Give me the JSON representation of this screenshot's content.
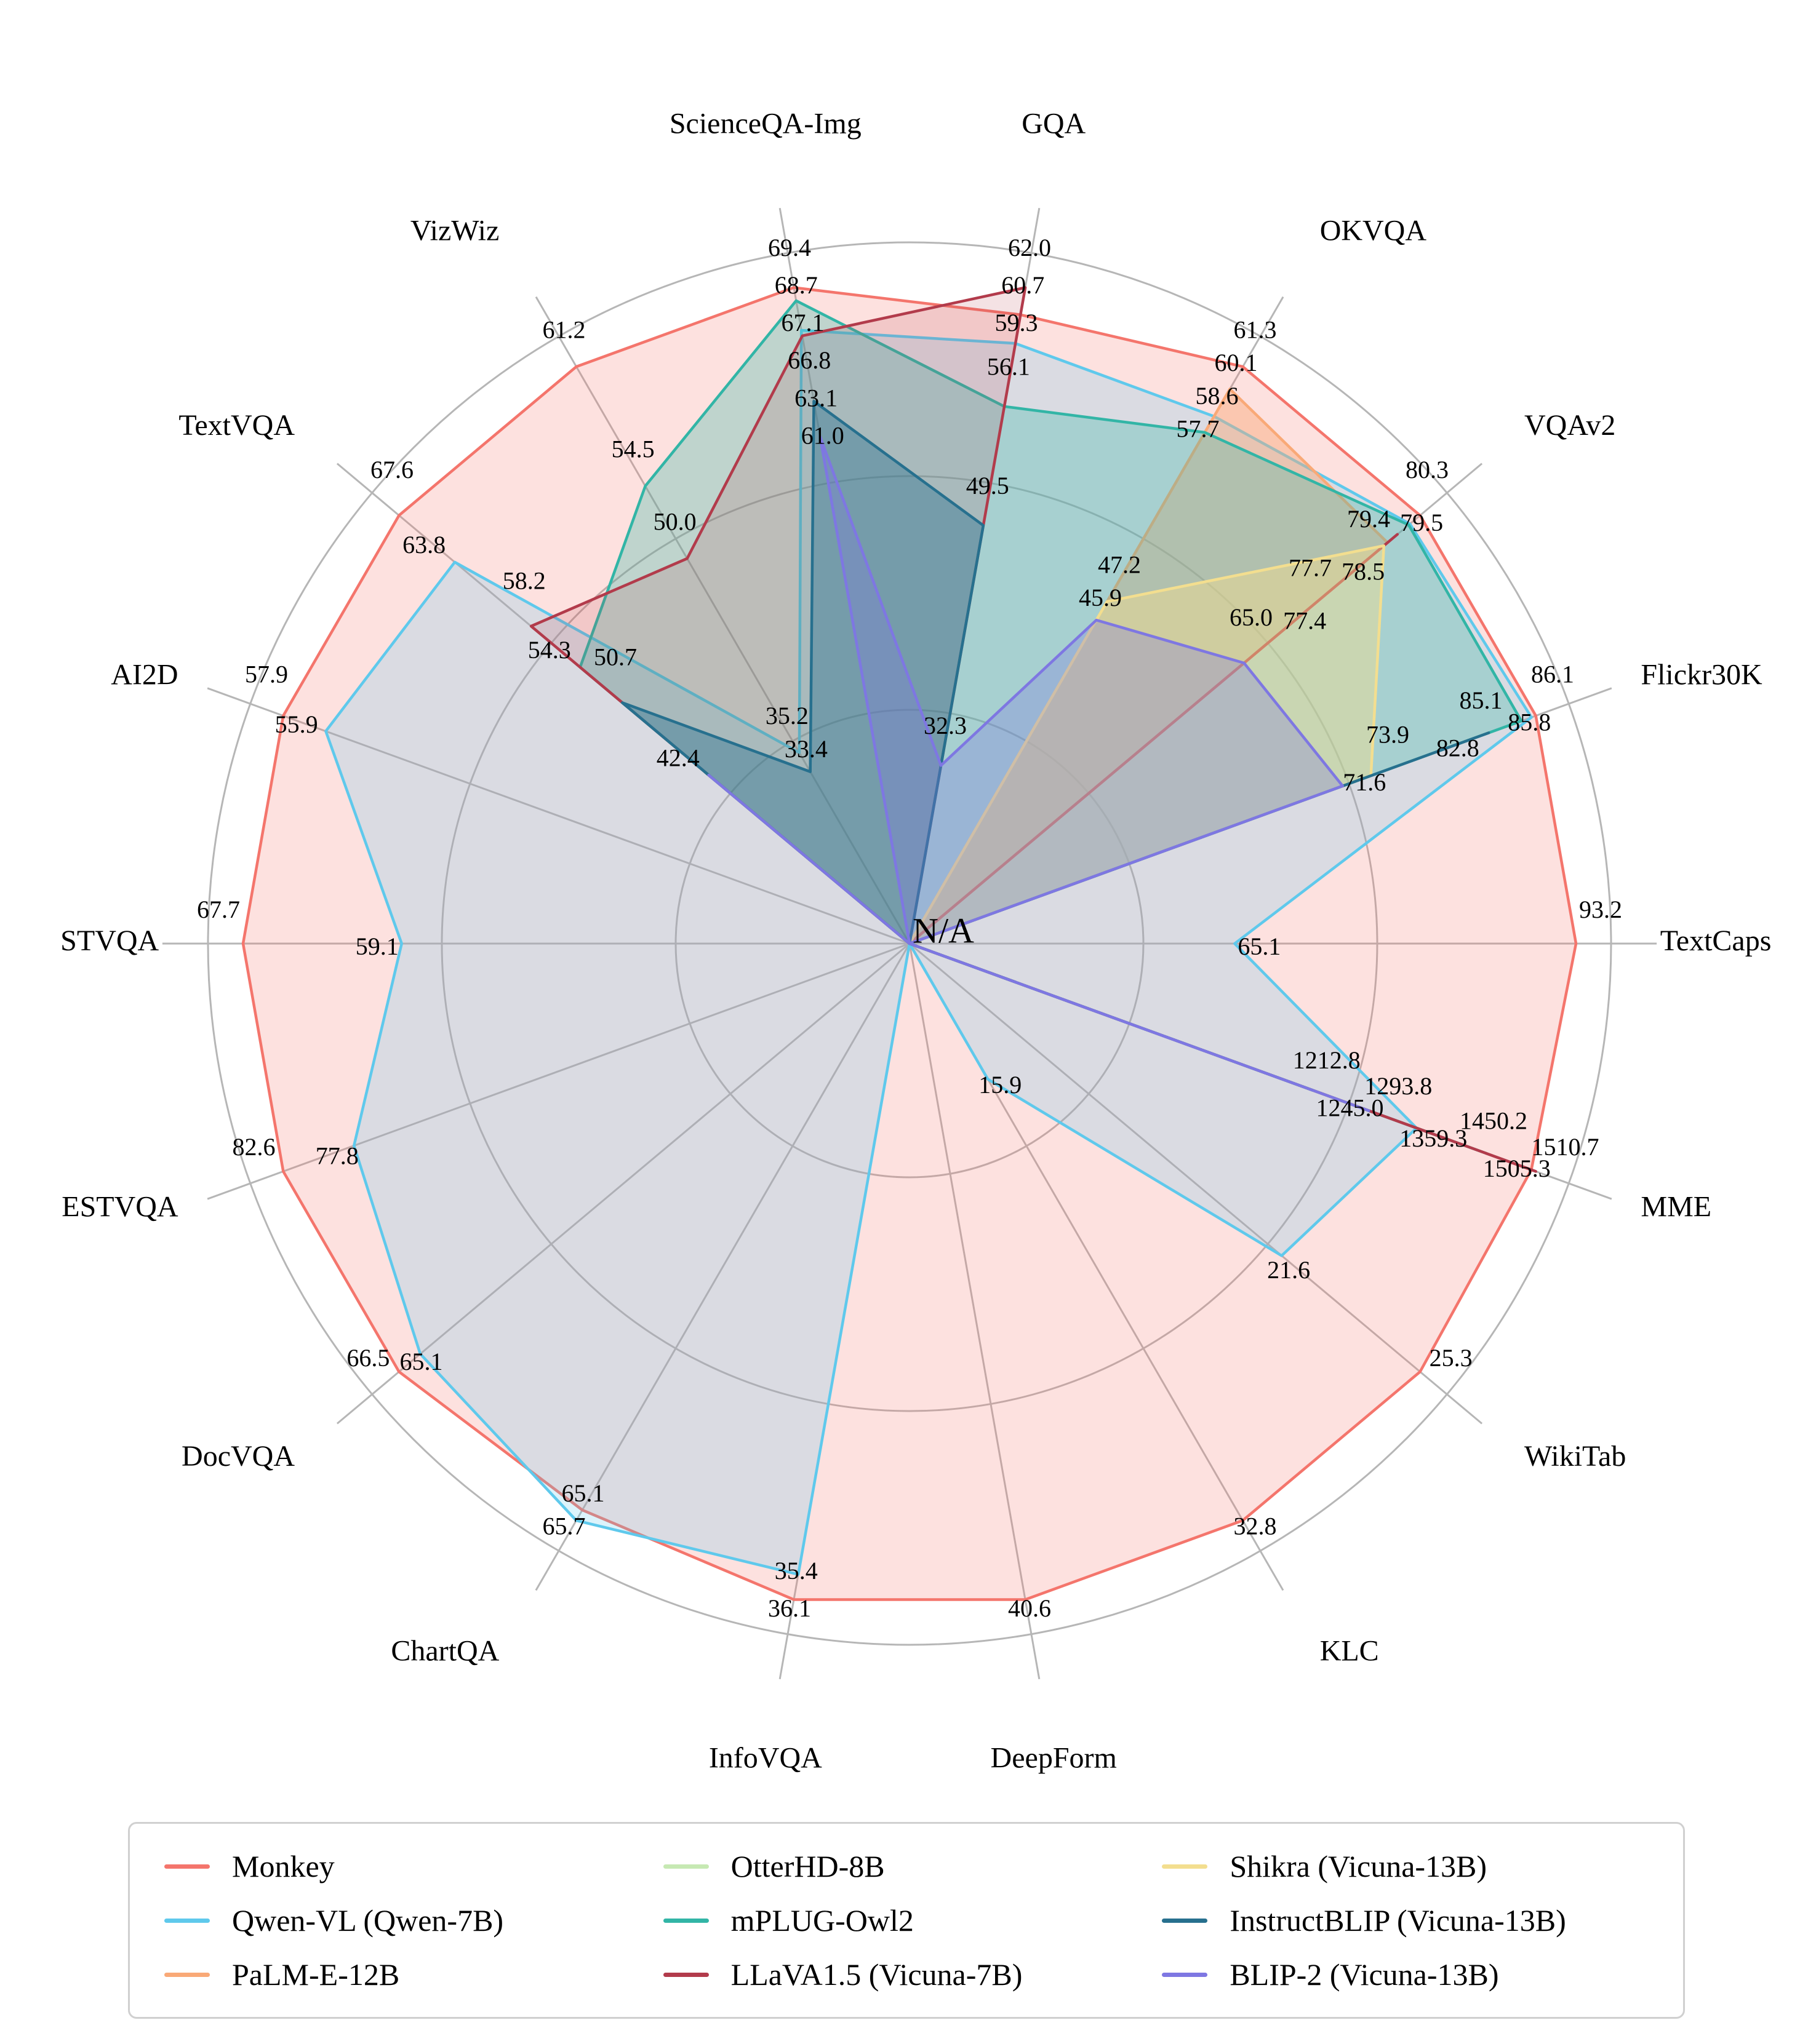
{
  "chart_data": {
    "type": "radar",
    "title": "",
    "center_label": "N/A",
    "grid_color": "#b6b6b6",
    "grid_rings": 3,
    "legend_position": "bottom",
    "legend_columns": 3,
    "axes": [
      "TextCaps",
      "Flickr30K",
      "VQAv2",
      "OKVQA",
      "GQA",
      "ScienceQA-Img",
      "VizWiz",
      "TextVQA",
      "AI2D",
      "STVQA",
      "ESTVQA",
      "DocVQA",
      "ChartQA",
      "InfoVQA",
      "DeepForm",
      "KLC",
      "WikiTab",
      "MME"
    ],
    "series": [
      {
        "name": "Monkey",
        "color": "#F4756C",
        "fill_opacity": 0.22,
        "values": {
          "TextCaps": 93.2,
          "Flickr30K": 86.1,
          "VQAv2": 80.3,
          "OKVQA": 61.3,
          "GQA": 60.7,
          "ScienceQA-Img": 69.4,
          "VizWiz": 61.2,
          "TextVQA": 67.6,
          "AI2D": 57.9,
          "STVQA": 67.7,
          "ESTVQA": 82.6,
          "DocVQA": 66.5,
          "ChartQA": 65.1,
          "InfoVQA": 36.1,
          "DeepForm": 40.6,
          "KLC": 32.8,
          "WikiTab": 25.3,
          "MME": 1505.3
        }
      },
      {
        "name": "Qwen-VL (Qwen-7B)",
        "color": "#5FC9EC",
        "fill_opacity": 0.22,
        "values": {
          "TextCaps": 65.1,
          "Flickr30K": 85.8,
          "VQAv2": 79.5,
          "OKVQA": 58.6,
          "GQA": 59.3,
          "ScienceQA-Img": 67.1,
          "VizWiz": 35.2,
          "TextVQA": 63.8,
          "AI2D": 55.9,
          "STVQA": 59.1,
          "ESTVQA": 77.8,
          "DocVQA": 65.1,
          "ChartQA": 65.7,
          "InfoVQA": 35.4,
          "KLC": 15.9,
          "WikiTab": 21.6,
          "MME": 1359.3
        }
      },
      {
        "name": "PaLM-E-12B",
        "color": "#F9A977",
        "fill_opacity": 0.45,
        "values": {
          "VQAv2": 77.7,
          "OKVQA": 60.1
        }
      },
      {
        "name": "OtterHD-8B",
        "color": "#C6E9B3",
        "fill_opacity": 0.35,
        "values": {
          "MME": 1245.0
        }
      },
      {
        "name": "mPLUG-Owl2",
        "color": "#32B5A6",
        "fill_opacity": 0.3,
        "values": {
          "Flickr30K": 85.1,
          "VQAv2": 79.4,
          "OKVQA": 57.7,
          "GQA": 56.1,
          "ScienceQA-Img": 68.7,
          "VizWiz": 54.5,
          "TextVQA": 54.3,
          "MME": 1450.2
        }
      },
      {
        "name": "LLaVA1.5 (Vicuna-7B)",
        "color": "#B23B4B",
        "fill_opacity": 0.15,
        "values": {
          "VQAv2": 78.5,
          "GQA": 62.0,
          "ScienceQA-Img": 66.8,
          "VizWiz": 50.0,
          "TextVQA": 58.2,
          "MME": 1510.7
        }
      },
      {
        "name": "Shikra (Vicuna-13B)",
        "color": "#F3DE8F",
        "fill_opacity": 0.45,
        "values": {
          "Flickr30K": 73.9,
          "VQAv2": 77.4,
          "OKVQA": 47.2
        }
      },
      {
        "name": "InstructBLIP (Vicuna-13B)",
        "color": "#27708E",
        "fill_opacity": 0.4,
        "values": {
          "Flickr30K": 82.8,
          "GQA": 49.5,
          "ScienceQA-Img": 63.1,
          "VizWiz": 33.4,
          "TextVQA": 50.7,
          "MME": 1212.8
        }
      },
      {
        "name": "BLIP-2 (Vicuna-13B)",
        "color": "#7E77E2",
        "fill_opacity": 0.3,
        "values": {
          "Flickr30K": 71.6,
          "VQAv2": 65.0,
          "OKVQA": 45.9,
          "GQA": 32.3,
          "ScienceQA-Img": 61.0,
          "TextVQA": 42.4,
          "MME": 1293.8
        }
      }
    ]
  }
}
